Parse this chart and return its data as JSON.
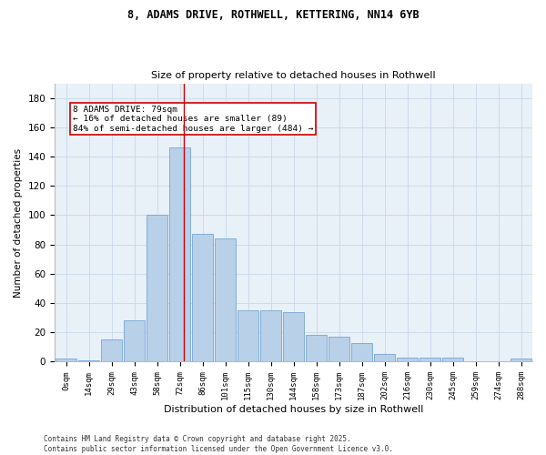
{
  "title1": "8, ADAMS DRIVE, ROTHWELL, KETTERING, NN14 6YB",
  "title2": "Size of property relative to detached houses in Rothwell",
  "xlabel": "Distribution of detached houses by size in Rothwell",
  "ylabel": "Number of detached properties",
  "bar_labels": [
    "0sqm",
    "14sqm",
    "29sqm",
    "43sqm",
    "58sqm",
    "72sqm",
    "86sqm",
    "101sqm",
    "115sqm",
    "130sqm",
    "144sqm",
    "158sqm",
    "173sqm",
    "187sqm",
    "202sqm",
    "216sqm",
    "230sqm",
    "245sqm",
    "259sqm",
    "274sqm",
    "288sqm"
  ],
  "bar_values": [
    2,
    1,
    15,
    28,
    100,
    146,
    87,
    84,
    35,
    35,
    34,
    18,
    17,
    13,
    5,
    3,
    3,
    3,
    0,
    0,
    2
  ],
  "bar_color": "#b8d0e8",
  "bar_edge_color": "#6699cc",
  "grid_color": "#c8d8e8",
  "bg_color": "#e8f0f8",
  "vline_x": 5.18,
  "vline_color": "#cc0000",
  "annotation_text": "8 ADAMS DRIVE: 79sqm\n← 16% of detached houses are smaller (89)\n84% of semi-detached houses are larger (484) →",
  "annotation_box_color": "#ffffff",
  "annotation_box_edge": "#cc0000",
  "footer": "Contains HM Land Registry data © Crown copyright and database right 2025.\nContains public sector information licensed under the Open Government Licence v3.0.",
  "ylim": [
    0,
    190
  ],
  "yticks": [
    0,
    20,
    40,
    60,
    80,
    100,
    120,
    140,
    160,
    180
  ]
}
